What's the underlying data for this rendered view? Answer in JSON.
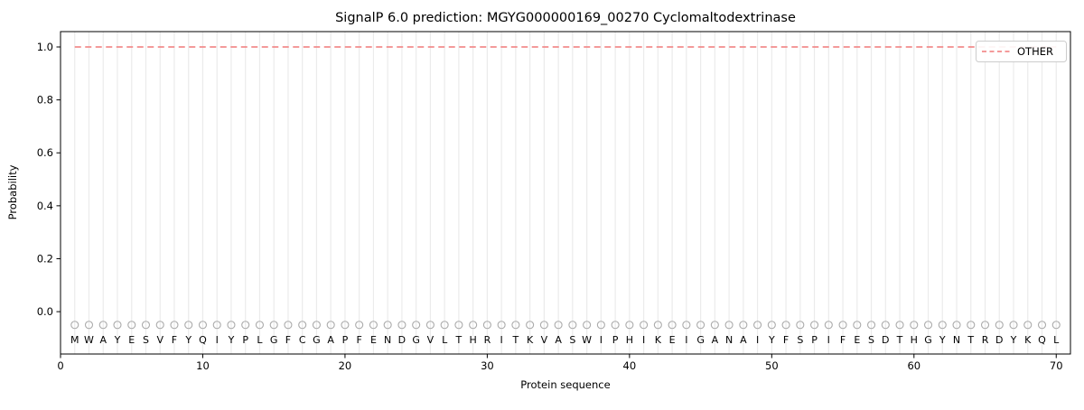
{
  "title": "SignalP 6.0 prediction: MGYG000000169_00270 Cyclomaltodextrinase",
  "chart_data": {
    "type": "line",
    "title": "SignalP 6.0 prediction: MGYG000000169_00270 Cyclomaltodextrinase",
    "xlabel": "Protein sequence",
    "ylabel": "Probability",
    "xlim": [
      0,
      71
    ],
    "ylim": [
      -0.16,
      1.058
    ],
    "xticks": [
      0,
      10,
      20,
      30,
      40,
      50,
      60,
      70
    ],
    "xtick_labels": [
      "0",
      "10",
      "20",
      "30",
      "40",
      "50",
      "60",
      "70"
    ],
    "yticks": [
      0.0,
      0.2,
      0.4,
      0.6,
      0.8,
      1.0
    ],
    "ytick_labels": [
      "0.0",
      "0.2",
      "0.4",
      "0.6",
      "0.8",
      "1.0"
    ],
    "grid": "vertical-gridline-per-residue",
    "sequence": "MWAYESVFYQIYPLGFCGAPFENDGVLTHRITKVASWIPHIKEIGANAIYFSPIFESDTHGYNTRDYKQL",
    "sequence_positions_start": 1,
    "series": [
      {
        "name": "OTHER",
        "style": "dashed",
        "color": "#f28c8c",
        "x_start": 1,
        "values": [
          1.0,
          1.0,
          1.0,
          1.0,
          1.0,
          1.0,
          1.0,
          1.0,
          1.0,
          1.0,
          1.0,
          1.0,
          1.0,
          1.0,
          1.0,
          1.0,
          1.0,
          1.0,
          1.0,
          1.0,
          1.0,
          1.0,
          1.0,
          1.0,
          1.0,
          1.0,
          1.0,
          1.0,
          1.0,
          1.0,
          1.0,
          1.0,
          1.0,
          1.0,
          1.0,
          1.0,
          1.0,
          1.0,
          1.0,
          1.0,
          1.0,
          1.0,
          1.0,
          1.0,
          1.0,
          1.0,
          1.0,
          1.0,
          1.0,
          1.0,
          1.0,
          1.0,
          1.0,
          1.0,
          1.0,
          1.0,
          1.0,
          1.0,
          1.0,
          1.0,
          1.0,
          1.0,
          1.0,
          1.0,
          1.0,
          1.0,
          1.0,
          1.0,
          1.0,
          1.0
        ]
      }
    ],
    "residue_markers": {
      "shape": "open-circle",
      "y": -0.05,
      "color": "#ababab"
    },
    "sequence_letters_y": -0.106,
    "legend": {
      "position": "upper-right",
      "entries": [
        {
          "label": "OTHER",
          "color": "#f28c8c",
          "style": "dashed"
        }
      ]
    },
    "colors": {
      "line": "#f28c8c",
      "grid": "#ebebeb",
      "marker": "#ababab",
      "sequence_letter": "#1f1f1f",
      "spine": "#000000",
      "tick": "#000000",
      "legend_border": "#cccccc",
      "legend_background": "#ffffff",
      "plot_background": "#ffffff"
    }
  }
}
